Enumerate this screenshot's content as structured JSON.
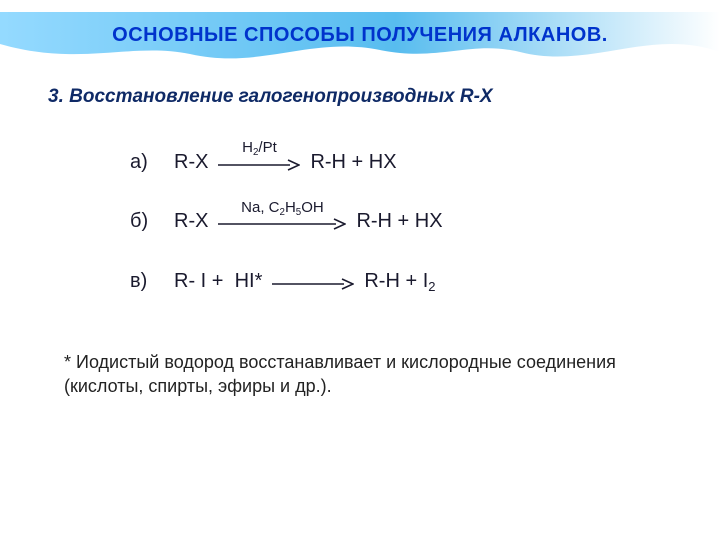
{
  "colors": {
    "title": "#0033cc",
    "subtitle": "#0f2a66",
    "body": "#1a1a2e",
    "banner_gradient_start": "#8fd8ff",
    "banner_gradient_mid": "#4fb9ee",
    "banner_gradient_end": "#ffffff",
    "arrow": "#1a1a2e"
  },
  "title": "ОСНОВНЫЕ СПОСОБЫ ПОЛУЧЕНИЯ АЛКАНОВ.",
  "subtitle": "3. Восстановление галогенопроизводных R-X",
  "reactions": [
    {
      "label": "а)",
      "left_html": "R-X",
      "condition_html": "H<sub>2</sub>/Pt",
      "right_html": "R-H + HX",
      "arrow_width": 82
    },
    {
      "label": "б)",
      "left_html": "R-X",
      "condition_html": "Na, C<sub>2</sub>H<sub>5</sub>OH",
      "right_html": "R-H + HX",
      "arrow_width": 128
    },
    {
      "label": "в)",
      "left_html": "R- I + &nbsp;HI*",
      "condition_html": "",
      "right_html": "R-H + I<sub>2</sub>",
      "arrow_width": 82
    }
  ],
  "footnote": "* Иодистый водород восстанавливает и кислородные соединения (кислоты, спирты, эфиры и др.)."
}
